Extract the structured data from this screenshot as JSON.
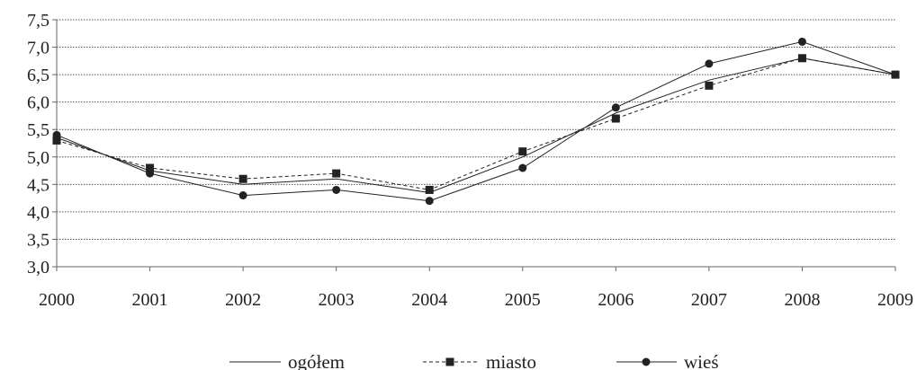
{
  "chart_data": {
    "type": "line",
    "title": "",
    "xlabel": "",
    "ylabel": "",
    "categories": [
      "2000",
      "2001",
      "2002",
      "2003",
      "2004",
      "2005",
      "2006",
      "2007",
      "2008",
      "2009"
    ],
    "ylim": [
      3.0,
      7.5
    ],
    "yticks": [
      "3,0",
      "3,5",
      "4,0",
      "4,5",
      "5,0",
      "5,5",
      "6,0",
      "6,5",
      "7,0",
      "7,5"
    ],
    "grid": "horizontal dotted",
    "legend_placement": "bottom",
    "series": [
      {
        "name": "ogółem",
        "style": "solid",
        "marker": "none",
        "values": [
          5.35,
          4.75,
          4.5,
          4.6,
          4.35,
          5.0,
          5.8,
          6.4,
          6.8,
          6.5
        ]
      },
      {
        "name": "miasto",
        "style": "dashed",
        "marker": "square",
        "values": [
          5.3,
          4.8,
          4.6,
          4.7,
          4.4,
          5.1,
          5.7,
          6.3,
          6.8,
          6.5
        ]
      },
      {
        "name": "wieś",
        "style": "solid",
        "marker": "circle",
        "values": [
          5.4,
          4.7,
          4.3,
          4.4,
          4.2,
          4.8,
          5.9,
          6.7,
          7.1,
          6.5
        ]
      }
    ]
  },
  "colors": {
    "line": "#222222",
    "grid": "#555555",
    "axis": "#666666"
  }
}
